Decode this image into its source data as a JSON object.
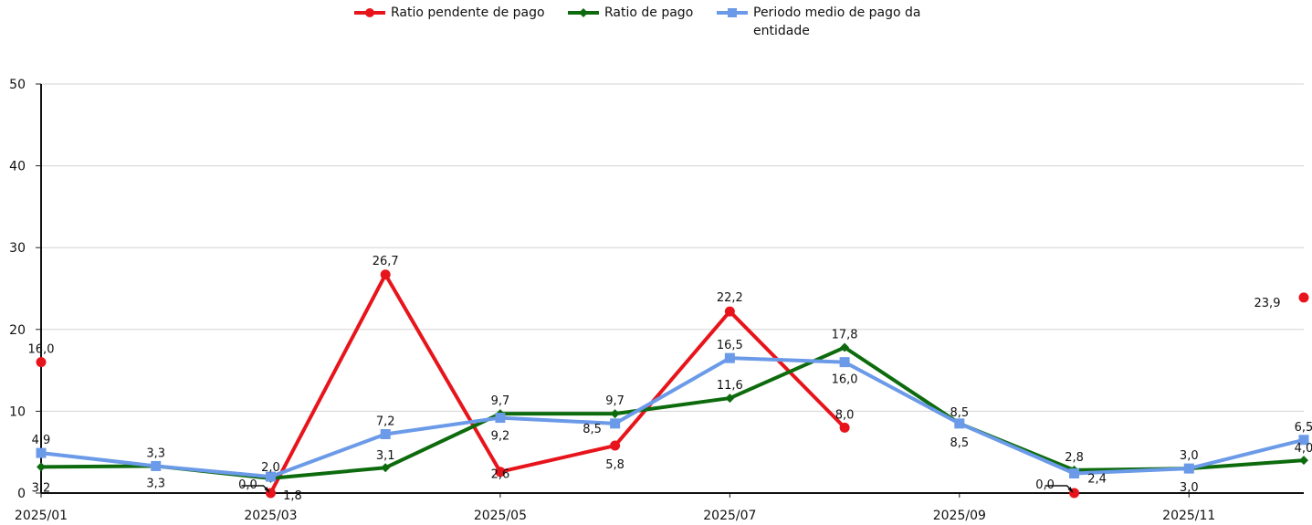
{
  "chart_data": {
    "type": "line",
    "x": [
      "2025/01",
      "2025/02",
      "2025/03",
      "2025/04",
      "2025/05",
      "2025/06",
      "2025/07",
      "2025/08",
      "2025/09",
      "2025/10",
      "2025/11",
      "2025/12"
    ],
    "x_tick_labels": [
      "2025/01",
      "2025/03",
      "2025/05",
      "2025/07",
      "2025/09",
      "2025/11"
    ],
    "ylim": [
      0,
      50
    ],
    "y_ticks": [
      "0",
      "10",
      "20",
      "30",
      "40",
      "50"
    ],
    "grid": true,
    "legend_position": "top",
    "series": [
      {
        "name": "Ratio pendente de pago",
        "color": "#e8141b",
        "marker": "circle",
        "values": [
          16.0,
          null,
          0.0,
          26.7,
          2.6,
          5.8,
          22.2,
          8.0,
          null,
          0.0,
          null,
          23.9
        ],
        "labels": [
          "16,0",
          "",
          "0,0",
          "26,7",
          "2,6",
          "5,8",
          "22,2",
          "8,0",
          "",
          "0,0",
          "",
          "23,9"
        ]
      },
      {
        "name": "Ratio de pago",
        "color": "#0d6b0d",
        "marker": "diamond",
        "values": [
          3.2,
          3.3,
          1.8,
          3.1,
          9.7,
          9.7,
          11.6,
          17.8,
          8.5,
          2.8,
          3.0,
          4.0
        ],
        "labels": [
          "3,2",
          "3,3",
          "1,8",
          "3,1",
          "9,7",
          "9,7",
          "11,6",
          "17,8",
          "8,5",
          "2,8",
          "3,0",
          "4,0"
        ]
      },
      {
        "name": "Periodo medio de pago da entidade",
        "color": "#6b9ae8",
        "marker": "square",
        "values": [
          4.9,
          3.3,
          2.0,
          7.2,
          9.2,
          8.5,
          16.5,
          16.0,
          8.5,
          2.4,
          3.0,
          6.5
        ],
        "labels": [
          "4,9",
          "3,3",
          "2,0",
          "7,2",
          "9,2",
          "8,5",
          "16,5",
          "16,0",
          "8,5",
          "2,4",
          "3,0",
          "6,5"
        ]
      }
    ]
  }
}
